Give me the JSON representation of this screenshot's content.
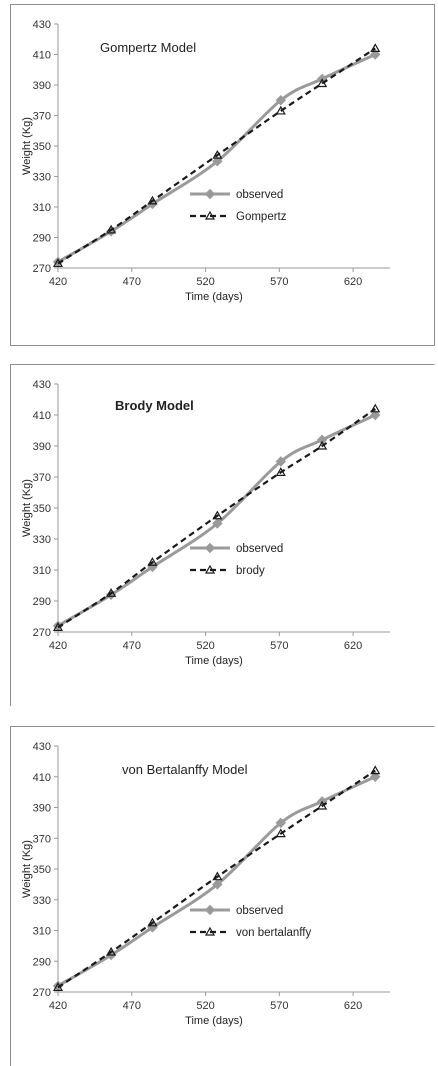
{
  "chart_data": [
    {
      "type": "line",
      "title": "Gompertz Model",
      "title_bold": false,
      "xlabel": "Time (days)",
      "ylabel": "Weight (Kg)",
      "xlim": [
        420,
        645
      ],
      "ylim": [
        270,
        430
      ],
      "xticks": [
        420,
        470,
        520,
        570,
        620
      ],
      "yticks": [
        270,
        290,
        310,
        330,
        350,
        370,
        390,
        410,
        430
      ],
      "legend_position": "center-right",
      "x": [
        420,
        456,
        484,
        528,
        571,
        599,
        635
      ],
      "series": [
        {
          "name": "observed",
          "style": "solid",
          "marker": "diamond",
          "color": "#9a9a9a",
          "values": [
            274,
            294,
            312,
            340,
            380,
            394,
            410
          ]
        },
        {
          "name": "Gompertz",
          "style": "dashed",
          "marker": "triangle",
          "color": "#1a1a1a",
          "values": [
            273,
            295,
            314,
            344,
            373,
            391,
            414
          ]
        }
      ]
    },
    {
      "type": "line",
      "title": "Brody Model",
      "title_bold": true,
      "xlabel": "Time (days)",
      "ylabel": "Weight (Kg)",
      "xlim": [
        420,
        645
      ],
      "ylim": [
        270,
        430
      ],
      "xticks": [
        420,
        470,
        520,
        570,
        620
      ],
      "yticks": [
        270,
        290,
        310,
        330,
        350,
        370,
        390,
        410,
        430
      ],
      "legend_position": "center-right",
      "x": [
        420,
        456,
        484,
        528,
        571,
        599,
        635
      ],
      "series": [
        {
          "name": "observed",
          "style": "solid",
          "marker": "diamond",
          "color": "#9a9a9a",
          "values": [
            274,
            294,
            312,
            340,
            380,
            394,
            410
          ]
        },
        {
          "name": "brody",
          "style": "dashed",
          "marker": "triangle",
          "color": "#1a1a1a",
          "values": [
            273,
            295,
            315,
            345,
            373,
            390,
            414
          ]
        }
      ]
    },
    {
      "type": "line",
      "title": "von Bertalanffy Model",
      "title_bold": false,
      "xlabel": "Time (days)",
      "ylabel": "Weight (Kg)",
      "xlim": [
        420,
        645
      ],
      "ylim": [
        270,
        430
      ],
      "xticks": [
        420,
        470,
        520,
        570,
        620
      ],
      "yticks": [
        270,
        290,
        310,
        330,
        350,
        370,
        390,
        410,
        430
      ],
      "legend_position": "center-right",
      "x": [
        420,
        456,
        484,
        528,
        571,
        599,
        635
      ],
      "series": [
        {
          "name": "observed",
          "style": "solid",
          "marker": "diamond",
          "color": "#9a9a9a",
          "values": [
            274,
            294,
            312,
            340,
            380,
            394,
            410
          ]
        },
        {
          "name": "von bertalanffy",
          "style": "dashed",
          "marker": "triangle",
          "color": "#1a1a1a",
          "values": [
            273,
            296,
            315,
            345,
            373,
            391,
            414
          ]
        }
      ]
    }
  ]
}
